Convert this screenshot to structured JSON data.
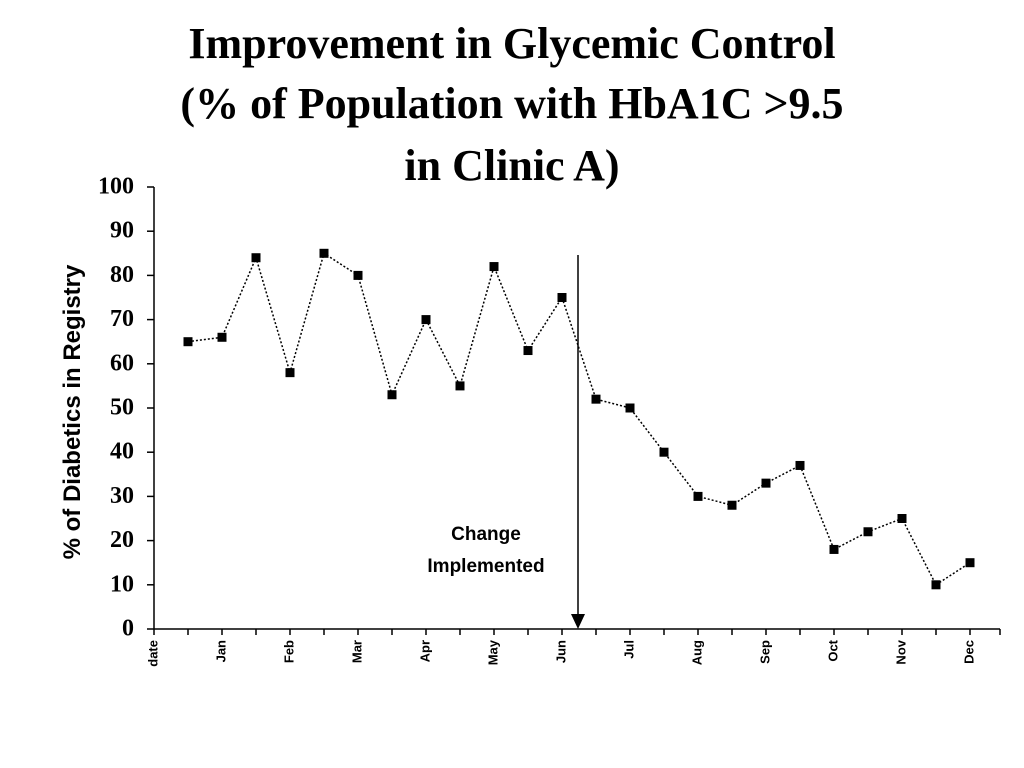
{
  "chart_data": {
    "type": "line",
    "title": [
      "Improvement in Glycemic Control",
      "(% of Population with HbA1C >9.5",
      "in Clinic A)"
    ],
    "y_label": "% of Diabetics in Registry",
    "categories": [
      "date",
      null,
      "Jan",
      null,
      "Feb",
      null,
      "Mar",
      null,
      "Apr",
      null,
      "May",
      null,
      "Jun",
      null,
      "Jul",
      null,
      "Aug",
      null,
      "Sep",
      null,
      "Oct",
      null,
      "Nov",
      null,
      "Dec"
    ],
    "series": [
      {
        "name": null,
        "color": "#000000",
        "values": [
          null,
          65,
          66,
          84,
          58,
          85,
          80,
          53,
          70,
          55,
          82,
          63,
          75,
          52,
          50,
          40,
          30,
          28,
          33,
          37,
          18,
          22,
          25,
          10,
          15
        ]
      }
    ],
    "ylim": [
      0,
      100
    ],
    "yticks": [
      0,
      10,
      20,
      30,
      40,
      50,
      60,
      70,
      80,
      90,
      100
    ],
    "annotation": [
      "Change",
      "Implemented"
    ]
  }
}
